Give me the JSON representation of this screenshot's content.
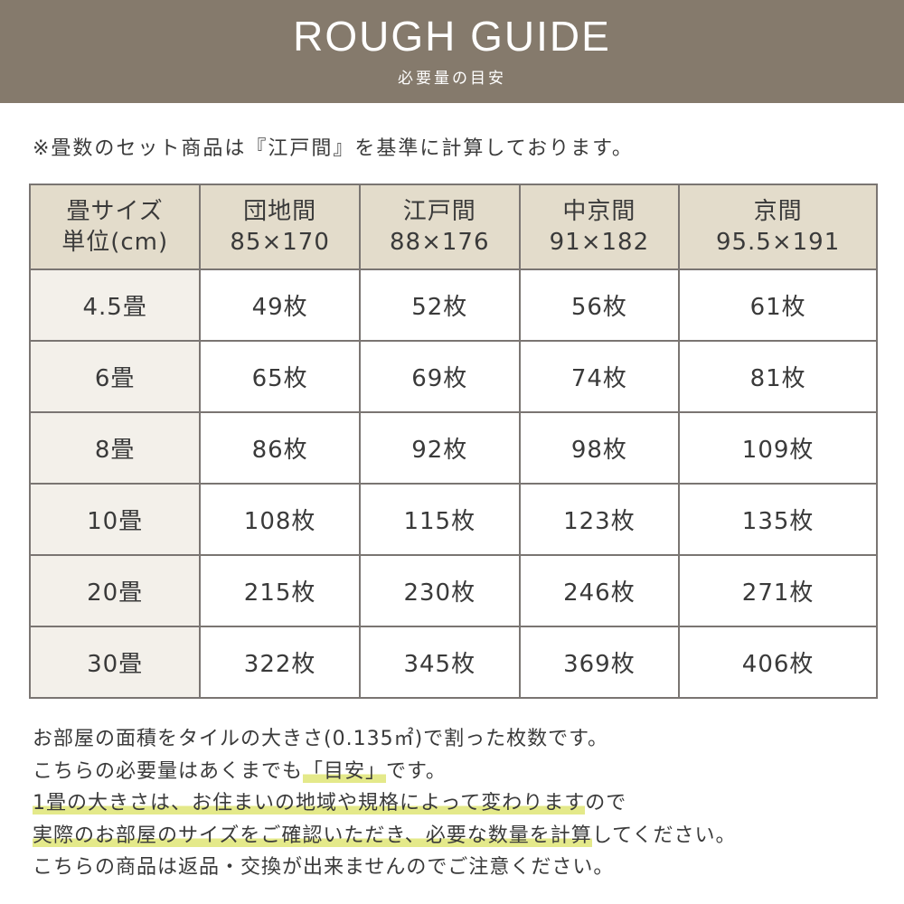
{
  "header": {
    "title": "ROUGH GUIDE",
    "subtitle": "必要量の目安"
  },
  "note": "※畳数のセット商品は『江戸間』を基準に計算しております。",
  "table": {
    "headers": [
      [
        "畳サイズ",
        "単位(cm)"
      ],
      [
        "団地間",
        "85×170"
      ],
      [
        "江戸間",
        "88×176"
      ],
      [
        "中京間",
        "91×182"
      ],
      [
        "京間",
        "95.5×191"
      ]
    ],
    "rows": [
      [
        "4.5畳",
        "49枚",
        "52枚",
        "56枚",
        "61枚"
      ],
      [
        "6畳",
        "65枚",
        "69枚",
        "74枚",
        "81枚"
      ],
      [
        "8畳",
        "86枚",
        "92枚",
        "98枚",
        "109枚"
      ],
      [
        "10畳",
        "108枚",
        "115枚",
        "123枚",
        "135枚"
      ],
      [
        "20畳",
        "215枚",
        "230枚",
        "246枚",
        "271枚"
      ],
      [
        "30畳",
        "322枚",
        "345枚",
        "369枚",
        "406枚"
      ]
    ]
  },
  "footer": {
    "line1": "お部屋の面積をタイルの大きさ(0.135㎡)で割った枚数です。",
    "line2a": "こちらの必要量はあくまでも",
    "line2b": "「目安」",
    "line2c": "です。",
    "line3a": "1畳の大きさは、お住まいの地域や規格によって変わります",
    "line3b": "ので",
    "line4a": "実際のお部屋のサイズをご確認いただき、必要な数量を計算",
    "line4b": "してください。",
    "line5": "こちらの商品は返品・交換が出来ませんのでご注意ください。"
  },
  "colors": {
    "header_bg": "#857a6c",
    "table_header_bg": "#e3dccb",
    "first_col_bg": "#f3f0ea",
    "highlight": "#e4e98a"
  }
}
